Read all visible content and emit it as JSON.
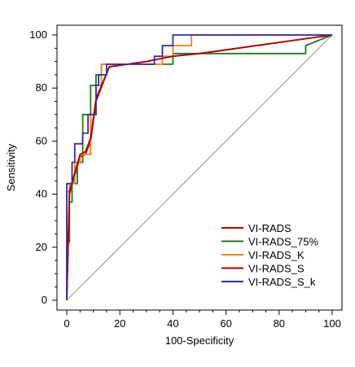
{
  "chart_data": {
    "type": "line",
    "title": "",
    "xlabel": "100-Specificity",
    "ylabel": "Sensitivity",
    "xlim": [
      0,
      100
    ],
    "ylim": [
      0,
      100
    ],
    "xticks": [
      0,
      20,
      40,
      60,
      80,
      100
    ],
    "yticks": [
      0,
      20,
      40,
      60,
      80,
      100
    ],
    "xtick_labels": [
      "0",
      "20",
      "40",
      "60",
      "80",
      "100"
    ],
    "ytick_labels": [
      "0",
      "20",
      "40",
      "60",
      "80",
      "100"
    ],
    "grid": false,
    "legend_position": "bottom-right",
    "reference_line": {
      "from": [
        0,
        0
      ],
      "to": [
        100,
        100
      ],
      "color": "#808080"
    },
    "series": [
      {
        "name": "VI-RADS",
        "color": "#c00000",
        "step": false,
        "x": [
          0,
          1,
          3,
          5,
          7,
          9,
          11,
          16,
          30,
          35,
          40,
          50,
          100
        ],
        "y": [
          0,
          40,
          47,
          54,
          55,
          60,
          75,
          88,
          90,
          91,
          92,
          93,
          100
        ]
      },
      {
        "name": "VI-RADS_75%",
        "color": "#1f7a1f",
        "step": true,
        "x": [
          0,
          0,
          1,
          1,
          2,
          2,
          4,
          4,
          6,
          6,
          9,
          9,
          11,
          11,
          13,
          13,
          40,
          40,
          90,
          90,
          100
        ],
        "y": [
          0,
          22,
          22,
          37,
          37,
          44,
          44,
          52,
          52,
          70,
          70,
          81,
          81,
          85,
          85,
          89,
          89,
          93,
          93,
          96,
          100
        ]
      },
      {
        "name": "VI-RADS_K",
        "color": "#ff7f0e",
        "step": true,
        "x": [
          0,
          0,
          1,
          1,
          3,
          3,
          5,
          5,
          9,
          9,
          11,
          11,
          13,
          13,
          36,
          36,
          40,
          40,
          47,
          47,
          100
        ],
        "y": [
          0,
          41,
          41,
          44,
          44,
          52,
          52,
          55,
          55,
          70,
          70,
          81,
          81,
          89,
          89,
          92,
          92,
          96,
          96,
          100,
          100
        ]
      },
      {
        "name": "VI-RADS_S",
        "color": "#b00000",
        "step": false,
        "x": [
          0,
          1,
          3,
          5,
          7,
          9,
          11,
          16,
          30,
          35,
          40,
          50,
          100
        ],
        "y": [
          0,
          41,
          48,
          55,
          56,
          61,
          76,
          88,
          90,
          91,
          92,
          93,
          100
        ]
      },
      {
        "name": "VI-RADS_S_k",
        "color": "#3030a0",
        "step": true,
        "x": [
          0,
          0,
          2,
          2,
          3,
          3,
          6,
          6,
          8,
          8,
          11,
          11,
          12,
          12,
          15,
          15,
          33,
          33,
          36,
          36,
          40,
          40,
          100
        ],
        "y": [
          0,
          44,
          44,
          52,
          52,
          59,
          59,
          63,
          63,
          70,
          70,
          81,
          81,
          85,
          85,
          89,
          89,
          92,
          92,
          96,
          96,
          100,
          100
        ]
      }
    ]
  }
}
